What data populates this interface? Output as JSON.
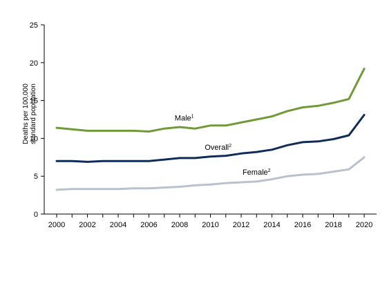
{
  "chart_data": {
    "type": "line",
    "ylabel_line1": "Deaths per 100,000",
    "ylabel_line2": "standard population",
    "xlabel": "",
    "ylim": [
      0,
      25
    ],
    "yticks": [
      0,
      5,
      10,
      15,
      20,
      25
    ],
    "xlim": [
      2000,
      2020
    ],
    "xticks": [
      2000,
      2002,
      2004,
      2006,
      2008,
      2010,
      2012,
      2014,
      2016,
      2018,
      2020
    ],
    "grid": false,
    "legend": "none (series labeled inline)",
    "x": [
      2000,
      2001,
      2002,
      2003,
      2004,
      2005,
      2006,
      2007,
      2008,
      2009,
      2010,
      2011,
      2012,
      2013,
      2014,
      2015,
      2016,
      2017,
      2018,
      2019,
      2020
    ],
    "series": [
      {
        "name": "Male",
        "footnote": "1",
        "color": "#6f9a36",
        "values": [
          11.4,
          11.2,
          11.0,
          11.0,
          11.0,
          11.0,
          10.9,
          11.3,
          11.5,
          11.3,
          11.7,
          11.7,
          12.1,
          12.5,
          12.9,
          13.6,
          14.1,
          14.3,
          14.7,
          15.2,
          19.2
        ]
      },
      {
        "name": "Overall",
        "footnote": "2",
        "color": "#0f2b57",
        "values": [
          7.0,
          7.0,
          6.9,
          7.0,
          7.0,
          7.0,
          7.0,
          7.2,
          7.4,
          7.4,
          7.6,
          7.7,
          8.0,
          8.2,
          8.5,
          9.1,
          9.5,
          9.6,
          9.9,
          10.4,
          13.1
        ]
      },
      {
        "name": "Female",
        "footnote": "2",
        "color": "#b9c1ce",
        "values": [
          3.2,
          3.3,
          3.3,
          3.3,
          3.3,
          3.4,
          3.4,
          3.5,
          3.6,
          3.8,
          3.9,
          4.1,
          4.2,
          4.3,
          4.6,
          5.0,
          5.2,
          5.3,
          5.6,
          5.9,
          7.5
        ]
      }
    ]
  }
}
